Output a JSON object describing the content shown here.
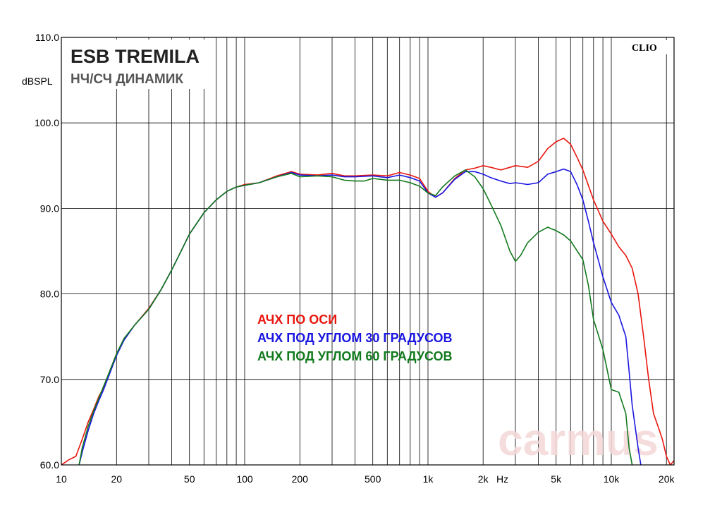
{
  "chart_data": {
    "type": "line",
    "title": "ESB TREMILA",
    "subtitle": "НЧ/СЧ ДИНАМИК",
    "brand": "CLIO",
    "watermark": "carmus",
    "ylabel": "dBSPL",
    "xunit": "Hz",
    "xscale": "log",
    "xlim": [
      10,
      22000
    ],
    "ylim": [
      60,
      110
    ],
    "grid": true,
    "ytick_values": [
      60,
      70,
      80,
      90,
      100,
      110
    ],
    "ytick_labels": [
      "60.0",
      "70.0",
      "80.0",
      "90.0",
      "100.0",
      "110.0"
    ],
    "xtick_values": [
      10,
      20,
      50,
      100,
      200,
      500,
      1000,
      2000,
      5000,
      10000,
      20000
    ],
    "xtick_labels": [
      "10",
      "20",
      "50",
      "100",
      "200",
      "500",
      "1k",
      "2k",
      "5k",
      "10k",
      "20k"
    ],
    "legend": [
      {
        "label": "АЧХ ПО ОСИ",
        "color": "#e8170f"
      },
      {
        "label": "АЧХ ПОД УГЛОМ 30 ГРАДУСОВ",
        "color": "#1a16e0"
      },
      {
        "label": "АЧХ ПОД УГЛОМ 60 ГРАДУСОВ",
        "color": "#127a1e"
      }
    ],
    "legend_placement": "center",
    "series": [
      {
        "name": "АЧХ ПО ОСИ",
        "color": "#e8170f",
        "points": [
          [
            10,
            60
          ],
          [
            11,
            60.6
          ],
          [
            12,
            61
          ],
          [
            13,
            63
          ],
          [
            14,
            65
          ],
          [
            15,
            66.5
          ],
          [
            16,
            68
          ],
          [
            17,
            69
          ],
          [
            18,
            70.5
          ],
          [
            20,
            73
          ],
          [
            22,
            74.7
          ],
          [
            25,
            76.3
          ],
          [
            30,
            78.3
          ],
          [
            35,
            80.5
          ],
          [
            40,
            82.8
          ],
          [
            45,
            85
          ],
          [
            50,
            87
          ],
          [
            60,
            89.5
          ],
          [
            70,
            91
          ],
          [
            80,
            92
          ],
          [
            90,
            92.5
          ],
          [
            100,
            92.8
          ],
          [
            120,
            93
          ],
          [
            150,
            93.8
          ],
          [
            180,
            94.3
          ],
          [
            200,
            94
          ],
          [
            250,
            93.9
          ],
          [
            300,
            94.1
          ],
          [
            350,
            93.8
          ],
          [
            400,
            93.8
          ],
          [
            500,
            93.9
          ],
          [
            600,
            93.8
          ],
          [
            700,
            94.2
          ],
          [
            800,
            93.9
          ],
          [
            900,
            93.5
          ],
          [
            1000,
            92
          ],
          [
            1100,
            91.3
          ],
          [
            1200,
            91.8
          ],
          [
            1400,
            93.5
          ],
          [
            1600,
            94.5
          ],
          [
            1800,
            94.7
          ],
          [
            2000,
            95
          ],
          [
            2200,
            94.8
          ],
          [
            2500,
            94.5
          ],
          [
            2800,
            94.8
          ],
          [
            3000,
            95
          ],
          [
            3500,
            94.8
          ],
          [
            4000,
            95.5
          ],
          [
            4500,
            97
          ],
          [
            5000,
            97.8
          ],
          [
            5500,
            98.2
          ],
          [
            6000,
            97.5
          ],
          [
            6500,
            96
          ],
          [
            7000,
            94.5
          ],
          [
            8000,
            91
          ],
          [
            9000,
            88.5
          ],
          [
            10000,
            87
          ],
          [
            11000,
            85.5
          ],
          [
            12000,
            84.5
          ],
          [
            13000,
            83
          ],
          [
            14000,
            80
          ],
          [
            15000,
            75
          ],
          [
            16000,
            70
          ],
          [
            17000,
            66
          ],
          [
            18000,
            64.5
          ],
          [
            19000,
            63
          ],
          [
            20000,
            61
          ],
          [
            21000,
            60
          ],
          [
            22000,
            60.5
          ]
        ]
      },
      {
        "name": "АЧХ ПОД УГЛОМ 30 ГРАДУСОВ",
        "color": "#1a16e0",
        "points": [
          [
            12.5,
            60
          ],
          [
            13,
            61.5
          ],
          [
            14,
            64
          ],
          [
            15,
            66
          ],
          [
            16,
            67.5
          ],
          [
            17,
            68.8
          ],
          [
            18,
            70.2
          ],
          [
            20,
            72.8
          ],
          [
            22,
            74.6
          ],
          [
            25,
            76.3
          ],
          [
            30,
            78.2
          ],
          [
            35,
            80.5
          ],
          [
            40,
            82.8
          ],
          [
            45,
            85
          ],
          [
            50,
            87
          ],
          [
            60,
            89.5
          ],
          [
            70,
            91
          ],
          [
            80,
            92
          ],
          [
            90,
            92.5
          ],
          [
            100,
            92.7
          ],
          [
            120,
            93
          ],
          [
            150,
            93.7
          ],
          [
            180,
            94.2
          ],
          [
            200,
            93.9
          ],
          [
            250,
            93.8
          ],
          [
            300,
            93.9
          ],
          [
            350,
            93.7
          ],
          [
            400,
            93.7
          ],
          [
            500,
            93.8
          ],
          [
            600,
            93.6
          ],
          [
            700,
            93.9
          ],
          [
            800,
            93.6
          ],
          [
            900,
            93.2
          ],
          [
            1000,
            91.8
          ],
          [
            1100,
            91.3
          ],
          [
            1200,
            91.8
          ],
          [
            1400,
            93.4
          ],
          [
            1600,
            94.3
          ],
          [
            1800,
            94.3
          ],
          [
            2000,
            94
          ],
          [
            2200,
            93.6
          ],
          [
            2500,
            93.2
          ],
          [
            2800,
            92.9
          ],
          [
            3000,
            93
          ],
          [
            3500,
            92.8
          ],
          [
            4000,
            93
          ],
          [
            4500,
            94
          ],
          [
            5000,
            94.3
          ],
          [
            5500,
            94.6
          ],
          [
            6000,
            94.3
          ],
          [
            6500,
            92.8
          ],
          [
            7000,
            91
          ],
          [
            7500,
            88.5
          ],
          [
            8000,
            86
          ],
          [
            9000,
            82
          ],
          [
            10000,
            79
          ],
          [
            11000,
            77.5
          ],
          [
            12000,
            75
          ],
          [
            12500,
            71
          ],
          [
            13000,
            67
          ],
          [
            14000,
            62
          ],
          [
            14500,
            60
          ]
        ]
      },
      {
        "name": "АЧХ ПОД УГЛОМ 60 ГРАДУСОВ",
        "color": "#127a1e",
        "points": [
          [
            12.5,
            60
          ],
          [
            13,
            62
          ],
          [
            14,
            64.5
          ],
          [
            15,
            66.3
          ],
          [
            16,
            67.8
          ],
          [
            17,
            69.2
          ],
          [
            18,
            70.5
          ],
          [
            20,
            73
          ],
          [
            22,
            74.8
          ],
          [
            25,
            76.3
          ],
          [
            30,
            78.2
          ],
          [
            35,
            80.5
          ],
          [
            40,
            82.8
          ],
          [
            45,
            85
          ],
          [
            50,
            87
          ],
          [
            60,
            89.5
          ],
          [
            70,
            91
          ],
          [
            80,
            92
          ],
          [
            90,
            92.5
          ],
          [
            100,
            92.7
          ],
          [
            120,
            93
          ],
          [
            150,
            93.7
          ],
          [
            180,
            94.1
          ],
          [
            200,
            93.7
          ],
          [
            250,
            93.8
          ],
          [
            300,
            93.7
          ],
          [
            350,
            93.3
          ],
          [
            400,
            93.2
          ],
          [
            450,
            93.2
          ],
          [
            500,
            93.5
          ],
          [
            550,
            93.4
          ],
          [
            600,
            93.3
          ],
          [
            700,
            93.3
          ],
          [
            800,
            93.0
          ],
          [
            900,
            92.6
          ],
          [
            1000,
            91.8
          ],
          [
            1100,
            91.5
          ],
          [
            1200,
            92.5
          ],
          [
            1400,
            93.8
          ],
          [
            1600,
            94.5
          ],
          [
            1800,
            93.7
          ],
          [
            2000,
            92.3
          ],
          [
            2200,
            90.5
          ],
          [
            2500,
            88
          ],
          [
            2800,
            85
          ],
          [
            3000,
            83.8
          ],
          [
            3200,
            84.5
          ],
          [
            3500,
            86
          ],
          [
            4000,
            87.2
          ],
          [
            4500,
            87.8
          ],
          [
            5000,
            87.4
          ],
          [
            5500,
            86.9
          ],
          [
            6000,
            86.2
          ],
          [
            7000,
            84
          ],
          [
            7500,
            81
          ],
          [
            8000,
            77
          ],
          [
            9000,
            73.5
          ],
          [
            10000,
            68.8
          ],
          [
            11000,
            68.5
          ],
          [
            12000,
            66
          ],
          [
            12500,
            62
          ],
          [
            13000,
            60
          ]
        ]
      }
    ]
  }
}
